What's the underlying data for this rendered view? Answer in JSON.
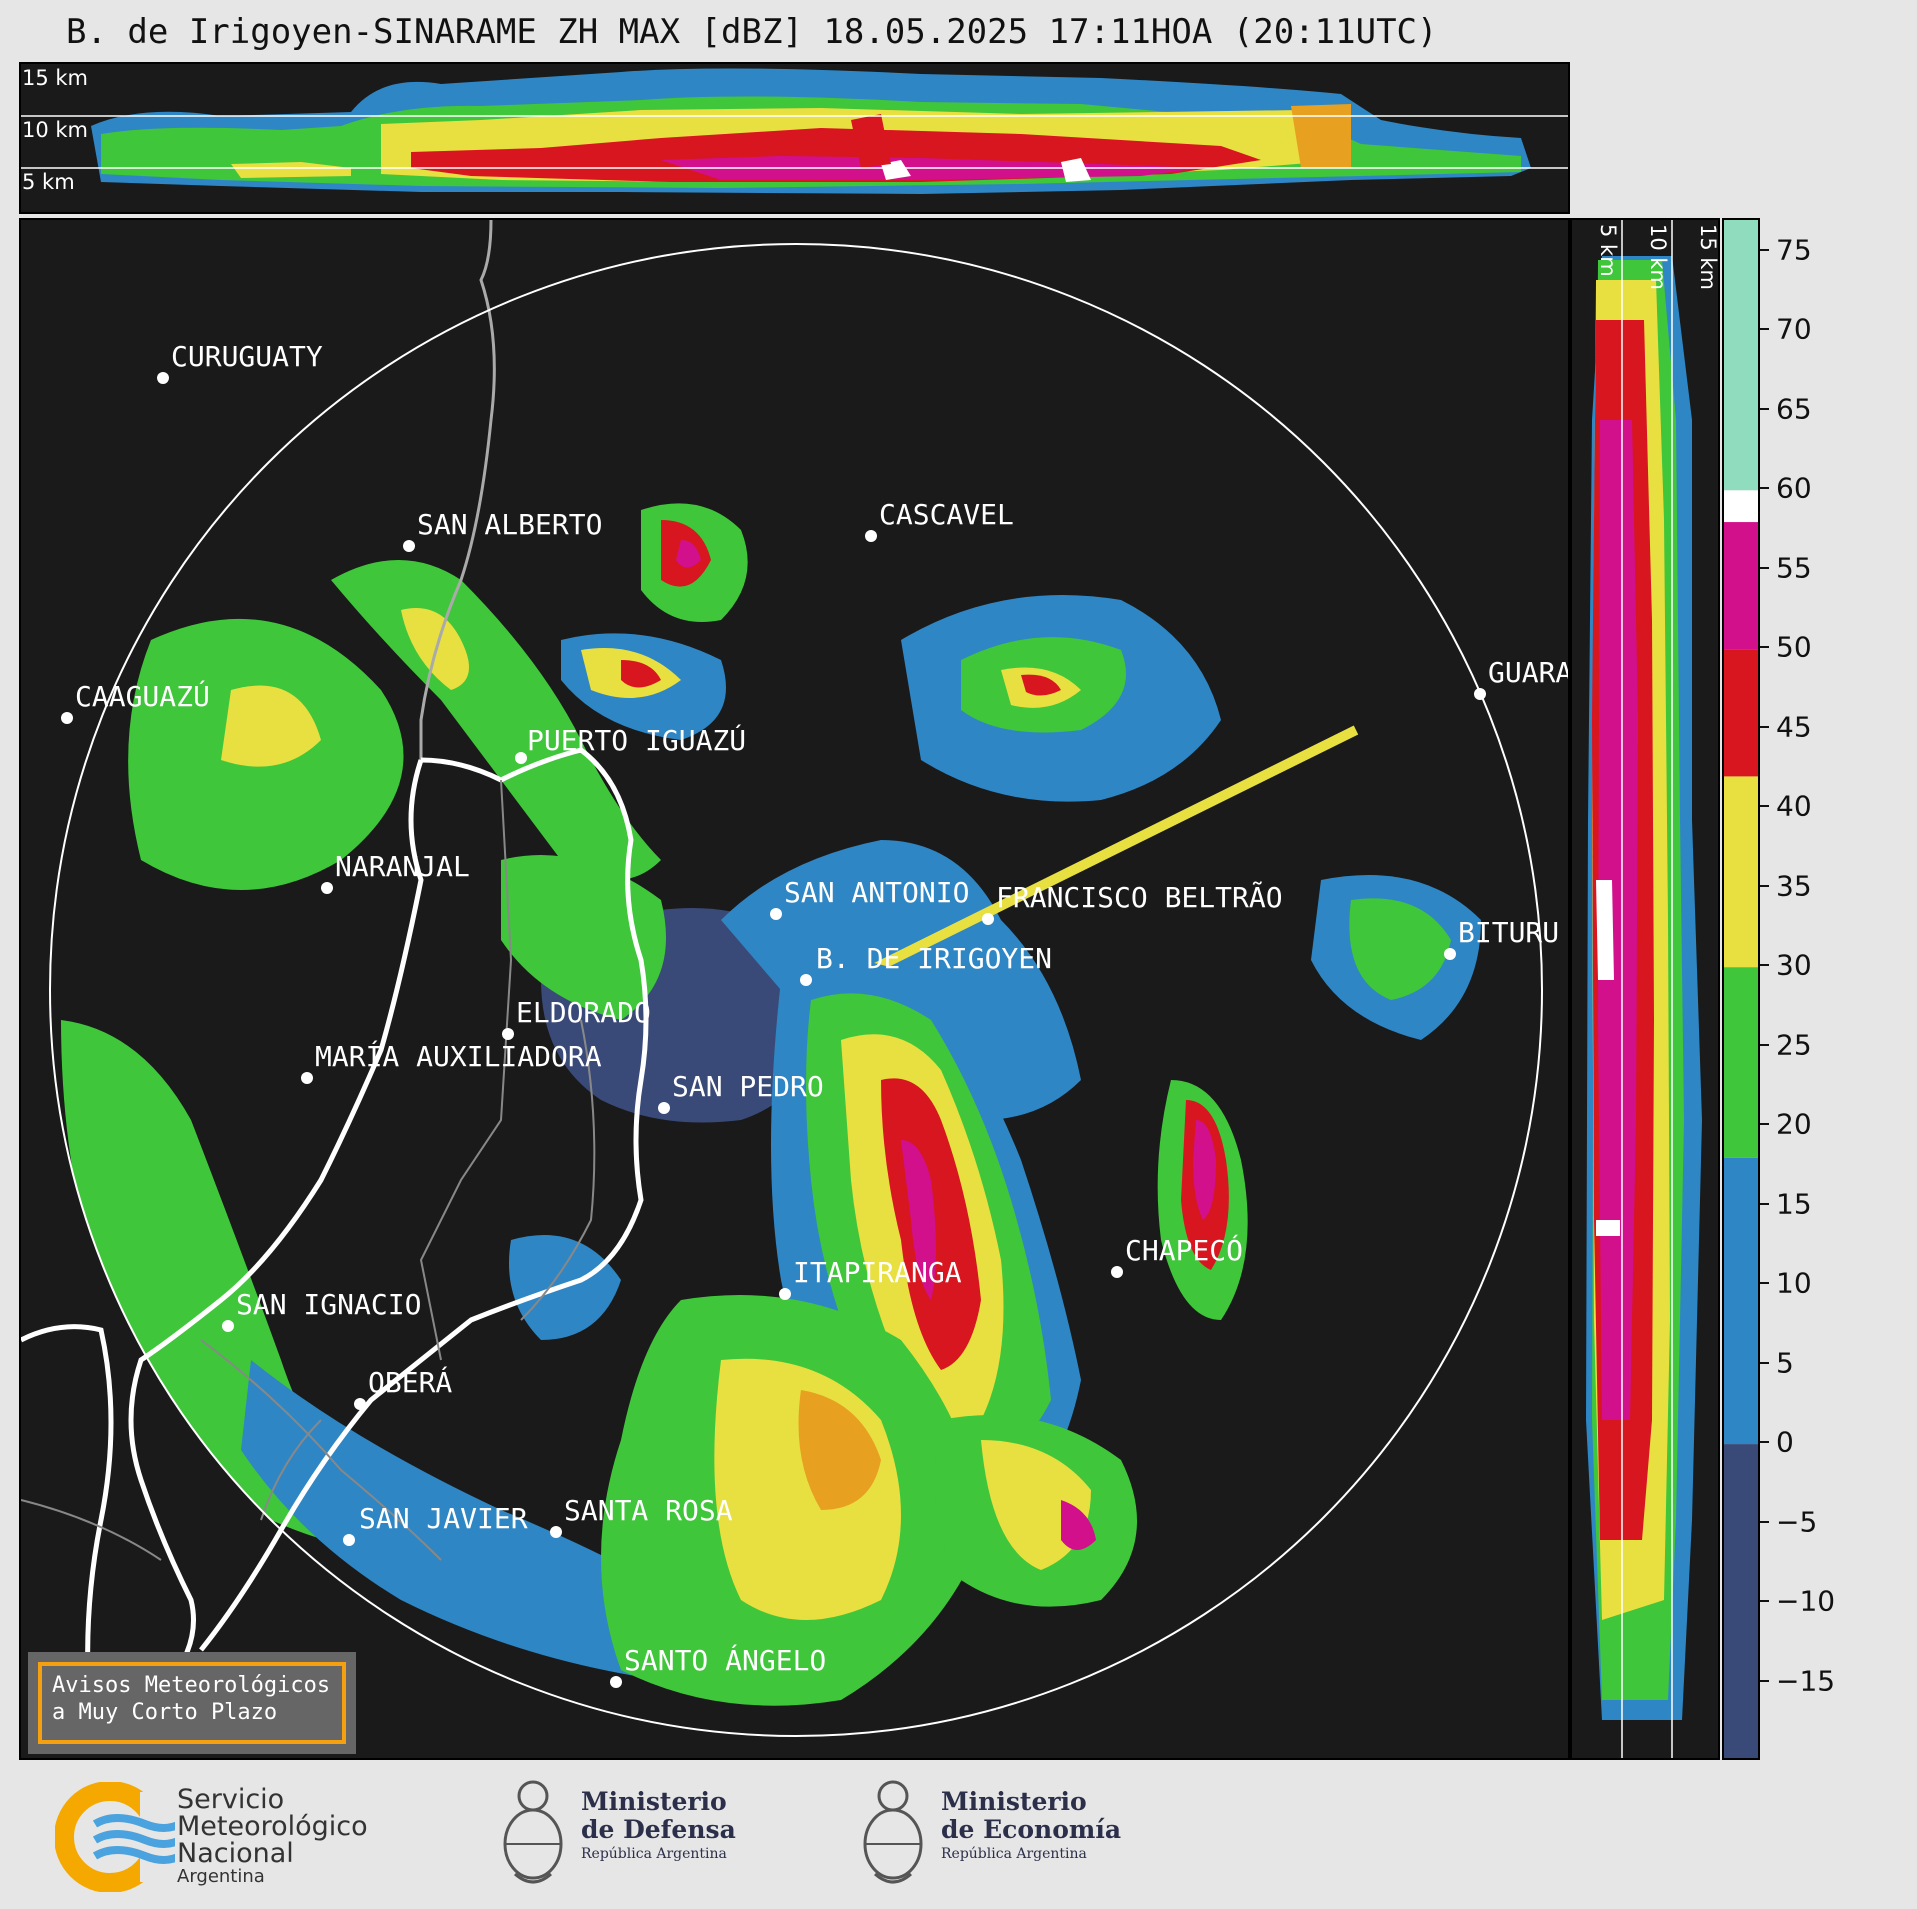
{
  "title": "B. de Irigoyen-SINARAME ZH MAX [dBZ] 18.05.2025 17:11HOA (20:11UTC)",
  "top_panel": {
    "height_labels": [
      "15 km",
      "10 km",
      "5 km"
    ]
  },
  "side_panel": {
    "height_labels": [
      "5 km",
      "10 km",
      "15 km"
    ]
  },
  "colorbar": {
    "unit": "dBZ",
    "ticks": [
      75,
      70,
      65,
      60,
      55,
      50,
      45,
      40,
      35,
      30,
      25,
      20,
      15,
      10,
      5,
      0,
      -5,
      -10,
      -15
    ],
    "tick_labels": [
      "75",
      "70",
      "65",
      "60",
      "55",
      "50",
      "45",
      "40",
      "35",
      "30",
      "25",
      "20",
      "15",
      "10",
      "5",
      "0",
      "−5",
      "−10",
      "−15"
    ],
    "range": [
      -20,
      77
    ],
    "colors": {
      "lt_0": "#3a4a78",
      "0_18": "#2f86c4",
      "18_30": "#3fc63a",
      "30_42": "#e8e040",
      "42_50": "#d8161f",
      "50_58": "#d2108c",
      "58_60": "#ffffff",
      "60_77": "#8fdcbf"
    }
  },
  "cities": [
    {
      "name": "CURUGUATY"
    },
    {
      "name": "SAN ALBERTO"
    },
    {
      "name": "CASCAVEL"
    },
    {
      "name": "CAAGUAZÚ"
    },
    {
      "name": "GUARA"
    },
    {
      "name": "PUERTO IGUAZÚ"
    },
    {
      "name": "NARANJAL"
    },
    {
      "name": "SAN ANTONIO"
    },
    {
      "name": "FRANCISCO BELTRÃO"
    },
    {
      "name": "BITURU"
    },
    {
      "name": "B. DE IRIGOYEN"
    },
    {
      "name": "ELDORADO"
    },
    {
      "name": "MARÍA AUXILIADORA"
    },
    {
      "name": "SAN PEDRO"
    },
    {
      "name": "CHAPECÓ"
    },
    {
      "name": "ITAPIRANGA"
    },
    {
      "name": "SAN IGNACIO"
    },
    {
      "name": "OBERÁ"
    },
    {
      "name": "SAN JAVIER"
    },
    {
      "name": "SANTA ROSA"
    },
    {
      "name": "SANTO ÁNGELO"
    }
  ],
  "aviso": {
    "line1": "Avisos Meteorológicos",
    "line2": "a Muy Corto Plazo"
  },
  "logos": {
    "smn": {
      "line1": "Servicio",
      "line2": "Meteorológico",
      "line3": "Nacional",
      "line4": "Argentina"
    },
    "defensa": {
      "line1": "Ministerio",
      "line2": "de Defensa",
      "line3": "República Argentina"
    },
    "economia": {
      "line1": "Ministerio",
      "line2": "de Economía",
      "line3": "República Argentina"
    }
  }
}
